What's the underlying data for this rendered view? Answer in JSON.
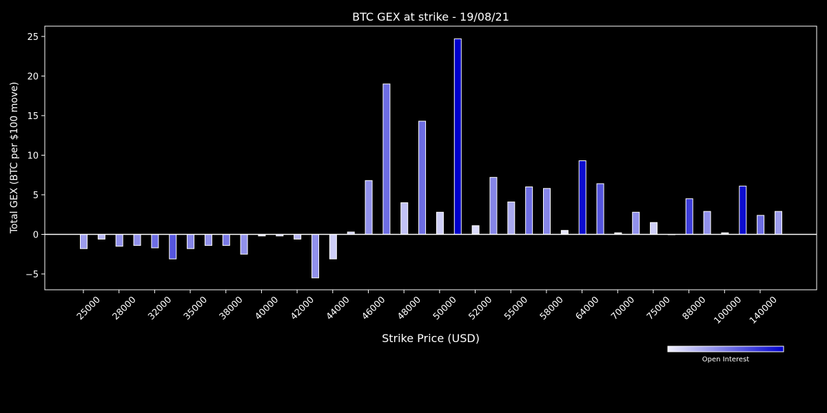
{
  "chart_data": {
    "type": "bar",
    "title": "BTC GEX at strike - 19/08/21",
    "xlabel": "Strike Price (USD)",
    "ylabel": "Total GEX (BTC per $100 move)",
    "ylim": [
      -7,
      26.3
    ],
    "yticks": [
      -5,
      0,
      5,
      10,
      15,
      20,
      25
    ],
    "yticklabels": [
      "−5",
      "0",
      "5",
      "10",
      "15",
      "20",
      "25"
    ],
    "xticklabels": [
      "25000",
      "28000",
      "32000",
      "35000",
      "38000",
      "40000",
      "42000",
      "44000",
      "46000",
      "48000",
      "50000",
      "52000",
      "55000",
      "58000",
      "64000",
      "70000",
      "75000",
      "88000",
      "100000",
      "140000"
    ],
    "bars": [
      {
        "value": -1.8,
        "oi": 0.35
      },
      {
        "value": -0.6,
        "oi": 0.25
      },
      {
        "value": -1.5,
        "oi": 0.4
      },
      {
        "value": -1.4,
        "oi": 0.4
      },
      {
        "value": -1.7,
        "oi": 0.55
      },
      {
        "value": -3.1,
        "oi": 0.65
      },
      {
        "value": -1.8,
        "oi": 0.45
      },
      {
        "value": -1.4,
        "oi": 0.4
      },
      {
        "value": -1.4,
        "oi": 0.5
      },
      {
        "value": -2.5,
        "oi": 0.4
      },
      {
        "value": -0.2,
        "oi": 0.1
      },
      {
        "value": -0.2,
        "oi": 0.2
      },
      {
        "value": -0.6,
        "oi": 0.25
      },
      {
        "value": -5.5,
        "oi": 0.4
      },
      {
        "value": -3.1,
        "oi": 0.15
      },
      {
        "value": 0.3,
        "oi": 0.15
      },
      {
        "value": 6.8,
        "oi": 0.4
      },
      {
        "value": 19.0,
        "oi": 0.55
      },
      {
        "value": 4.0,
        "oi": 0.2
      },
      {
        "value": 14.3,
        "oi": 0.55
      },
      {
        "value": 2.8,
        "oi": 0.15
      },
      {
        "value": 24.7,
        "oi": 1.0
      },
      {
        "value": 1.1,
        "oi": 0.1
      },
      {
        "value": 7.2,
        "oi": 0.45
      },
      {
        "value": 4.1,
        "oi": 0.3
      },
      {
        "value": 6.0,
        "oi": 0.55
      },
      {
        "value": 5.8,
        "oi": 0.45
      },
      {
        "value": 0.5,
        "oi": 0.05
      },
      {
        "value": 9.3,
        "oi": 0.95
      },
      {
        "value": 6.4,
        "oi": 0.65
      },
      {
        "value": 0.2,
        "oi": 0.1
      },
      {
        "value": 2.8,
        "oi": 0.4
      },
      {
        "value": 1.5,
        "oi": 0.15
      },
      {
        "value": 0.0,
        "oi": 0.1
      },
      {
        "value": 4.5,
        "oi": 0.75
      },
      {
        "value": 2.9,
        "oi": 0.4
      },
      {
        "value": 0.2,
        "oi": 0.15
      },
      {
        "value": 6.1,
        "oi": 0.95
      },
      {
        "value": 2.4,
        "oi": 0.55
      },
      {
        "value": 2.9,
        "oi": 0.35
      }
    ],
    "legend": {
      "label": "Open Interest",
      "placement": "bottom-right",
      "colors": [
        "#f2f2ff",
        "#0000cc"
      ]
    },
    "grid": false,
    "colors": {
      "background": "#000000",
      "bar_low": "#f2f2ff",
      "bar_high": "#0000cc",
      "edge": "#ffffff",
      "zero_line": "#ffffff"
    }
  }
}
